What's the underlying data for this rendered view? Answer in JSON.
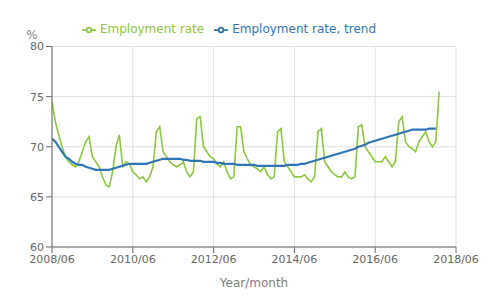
{
  "chart_data": {
    "type": "line",
    "xlabel": "Year/month",
    "ylabel": "%",
    "x": [
      0,
      1,
      2,
      3,
      4,
      5,
      6,
      7,
      8,
      9,
      10,
      11,
      12,
      13,
      14,
      15,
      16,
      17,
      18,
      19,
      20,
      21,
      22,
      23,
      24,
      25,
      26,
      27,
      28,
      29,
      30,
      31,
      32,
      33,
      34,
      35,
      36,
      37,
      38,
      39,
      40,
      41,
      42,
      43,
      44,
      45,
      46,
      47,
      48,
      49,
      50,
      51,
      52,
      53,
      54,
      55,
      56,
      57,
      58,
      59,
      60,
      61,
      62,
      63,
      64,
      65,
      66,
      67,
      68,
      69,
      70,
      71,
      72,
      73,
      74,
      75,
      76,
      77,
      78,
      79,
      80,
      81,
      82,
      83,
      84,
      85,
      86,
      87,
      88,
      89,
      90,
      91,
      92,
      93,
      94,
      95,
      96,
      97,
      98,
      99,
      100,
      101,
      102,
      103,
      104,
      105,
      106,
      107,
      108,
      109,
      110,
      111,
      112,
      113,
      114,
      115
    ],
    "series": [
      {
        "name": "Employment rate",
        "color": "#8dc63f",
        "values": [
          74.5,
          72.5,
          71.2,
          70.0,
          69.0,
          68.5,
          68.2,
          68.0,
          68.5,
          69.5,
          70.5,
          71.0,
          69.0,
          68.5,
          68.0,
          67.0,
          66.2,
          66.0,
          67.5,
          70.0,
          71.2,
          68.0,
          68.5,
          68.3,
          67.5,
          67.2,
          66.8,
          67.0,
          66.5,
          67.0,
          68.0,
          71.5,
          72.0,
          69.5,
          69.0,
          68.5,
          68.2,
          68.0,
          68.2,
          68.5,
          67.5,
          67.0,
          67.5,
          72.8,
          73.0,
          70.0,
          69.5,
          69.0,
          68.8,
          68.3,
          68.0,
          68.5,
          67.5,
          66.8,
          67.0,
          72.0,
          72.0,
          69.5,
          68.8,
          68.2,
          68.0,
          67.8,
          67.5,
          68.0,
          67.2,
          66.8,
          67.0,
          71.5,
          71.8,
          68.5,
          68.0,
          67.5,
          67.0,
          67.0,
          67.0,
          67.2,
          66.8,
          66.5,
          67.0,
          71.5,
          71.8,
          68.5,
          68.0,
          67.5,
          67.2,
          67.0,
          67.0,
          67.5,
          67.0,
          66.8,
          67.0,
          72.0,
          72.2,
          70.0,
          69.5,
          69.0,
          68.5,
          68.5,
          68.5,
          69.0,
          68.5,
          68.0,
          68.5,
          72.5,
          73.0,
          70.5,
          70.0,
          69.8,
          69.5,
          70.5,
          71.0,
          71.5,
          70.5,
          70.0,
          70.5,
          75.5
        ]
      },
      {
        "name": "Employment rate, trend",
        "color": "#2e75b6",
        "values": [
          70.8,
          70.5,
          70.0,
          69.5,
          69.0,
          68.8,
          68.5,
          68.3,
          68.2,
          68.2,
          68.0,
          67.9,
          67.8,
          67.7,
          67.7,
          67.7,
          67.7,
          67.7,
          67.8,
          67.9,
          68.0,
          68.1,
          68.2,
          68.3,
          68.3,
          68.3,
          68.3,
          68.3,
          68.3,
          68.4,
          68.5,
          68.6,
          68.7,
          68.8,
          68.8,
          68.8,
          68.8,
          68.8,
          68.8,
          68.7,
          68.7,
          68.6,
          68.6,
          68.6,
          68.6,
          68.5,
          68.5,
          68.5,
          68.5,
          68.4,
          68.4,
          68.3,
          68.3,
          68.3,
          68.3,
          68.2,
          68.2,
          68.2,
          68.2,
          68.2,
          68.2,
          68.1,
          68.1,
          68.1,
          68.1,
          68.1,
          68.1,
          68.1,
          68.1,
          68.1,
          68.2,
          68.2,
          68.2,
          68.2,
          68.3,
          68.3,
          68.4,
          68.5,
          68.6,
          68.7,
          68.8,
          68.9,
          69.0,
          69.1,
          69.2,
          69.3,
          69.4,
          69.5,
          69.6,
          69.7,
          69.8,
          70.0,
          70.1,
          70.2,
          70.4,
          70.5,
          70.6,
          70.7,
          70.8,
          70.9,
          71.0,
          71.1,
          71.2,
          71.3,
          71.4,
          71.5,
          71.6,
          71.7,
          71.7,
          71.7,
          71.7,
          71.7,
          71.8,
          71.8,
          71.8,
          null
        ]
      }
    ],
    "xlim": [
      0,
      120
    ],
    "xticks": [
      {
        "value": 0,
        "label": "2008/06"
      },
      {
        "value": 24,
        "label": "2010/06"
      },
      {
        "value": 48,
        "label": "2012/06"
      },
      {
        "value": 72,
        "label": "2014/06"
      },
      {
        "value": 96,
        "label": "2016/06"
      },
      {
        "value": 120,
        "label": "2018/06"
      }
    ],
    "ylim": [
      60,
      80
    ],
    "yticks": [
      60,
      65,
      70,
      75,
      80
    ],
    "grid": true,
    "legend": "top"
  }
}
